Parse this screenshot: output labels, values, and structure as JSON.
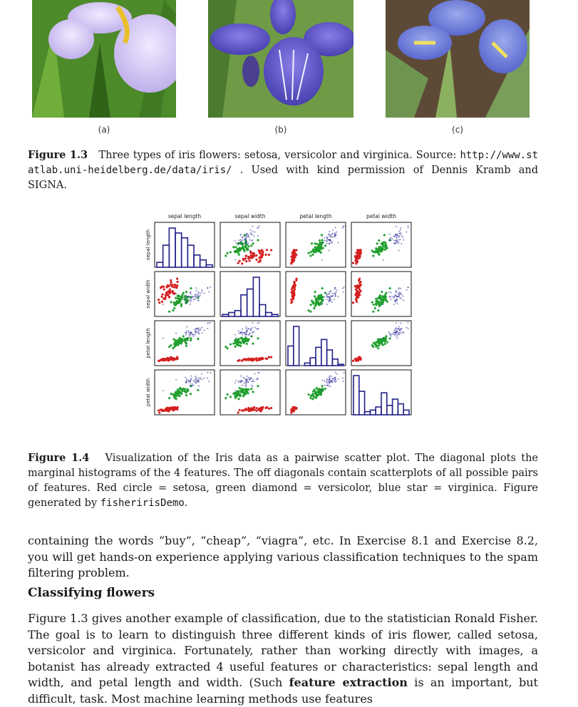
{
  "figure_1_3": {
    "panels": [
      {
        "label": "(a)",
        "icon": "iris-setosa-photo"
      },
      {
        "label": "(b)",
        "icon": "iris-versicolor-photo"
      },
      {
        "label": "(c)",
        "icon": "iris-virginica-photo"
      }
    ],
    "caption_label": "Figure 1.3",
    "caption_text": "Three types of iris flowers: setosa, versicolor and virginica.  Source: ",
    "caption_url": "http://www.statlab.uni-heidelberg.de/data/iris/",
    "caption_tail": " . Used with kind permission of Dennis Kramb and SIGNA."
  },
  "figure_1_4": {
    "caption_label": "Figure 1.4",
    "caption_text": "Visualization of the Iris data as a pairwise scatter plot.  The diagonal plots the marginal histograms of the 4 features.  The off diagonals contain scatterplots of all possible pairs of features.  Red circle = setosa, green diamond = versicolor, blue star = virginica. Figure generated by ",
    "caption_code": "fisheririsDemo",
    "caption_end": "."
  },
  "chart_data": {
    "type": "scatter",
    "title": "",
    "features": [
      "sepal length",
      "sepal width",
      "petal length",
      "petal width"
    ],
    "series": [
      {
        "name": "setosa",
        "color": "#d42020",
        "marker": "circle",
        "mean": [
          5.0,
          3.4,
          1.5,
          0.25
        ],
        "sd": [
          0.35,
          0.38,
          0.17,
          0.1
        ]
      },
      {
        "name": "versicolor",
        "color": "#1f9e2c",
        "marker": "diamond",
        "mean": [
          5.9,
          2.8,
          4.3,
          1.3
        ],
        "sd": [
          0.5,
          0.31,
          0.47,
          0.2
        ]
      },
      {
        "name": "virginica",
        "color": "#2a2a9a",
        "marker": "star",
        "mean": [
          6.6,
          3.0,
          5.55,
          2.0
        ],
        "sd": [
          0.63,
          0.32,
          0.55,
          0.27
        ]
      }
    ],
    "ranges": [
      [
        4.3,
        7.9
      ],
      [
        2.0,
        4.4
      ],
      [
        1.0,
        6.9
      ],
      [
        0.1,
        2.5
      ]
    ],
    "histograms": [
      [
        2,
        9,
        16,
        14,
        12,
        9,
        5,
        3,
        1
      ],
      [
        1,
        2,
        3,
        11,
        14,
        20,
        6,
        2,
        1
      ],
      [
        15,
        30,
        0,
        2,
        6,
        14,
        20,
        12,
        5,
        1
      ],
      [
        25,
        15,
        2,
        3,
        5,
        14,
        6,
        10,
        7,
        3
      ]
    ]
  },
  "body": {
    "paragraph_1": "containing the words “buy”, “cheap”, “viagra”, etc. In Exercise 8.1 and Exercise 8.2, you will get hands-on experience applying various classification techniques to the spam filtering problem.",
    "heading": "Classifying flowers",
    "paragraph_2_start": "Figure 1.3 gives another example of classification, due to the statistician Ronald Fisher. The goal is to learn to distinguish three different kinds of iris flower, called setosa, versicolor and virginica. Fortunately, rather than working directly with images, a botanist has already extracted 4 useful features or characteristics: sepal length and width, and petal length and width. (Such ",
    "bold_term": "feature extraction",
    "paragraph_2_end": " is an important, but difficult, task.  Most machine learning methods use features"
  }
}
